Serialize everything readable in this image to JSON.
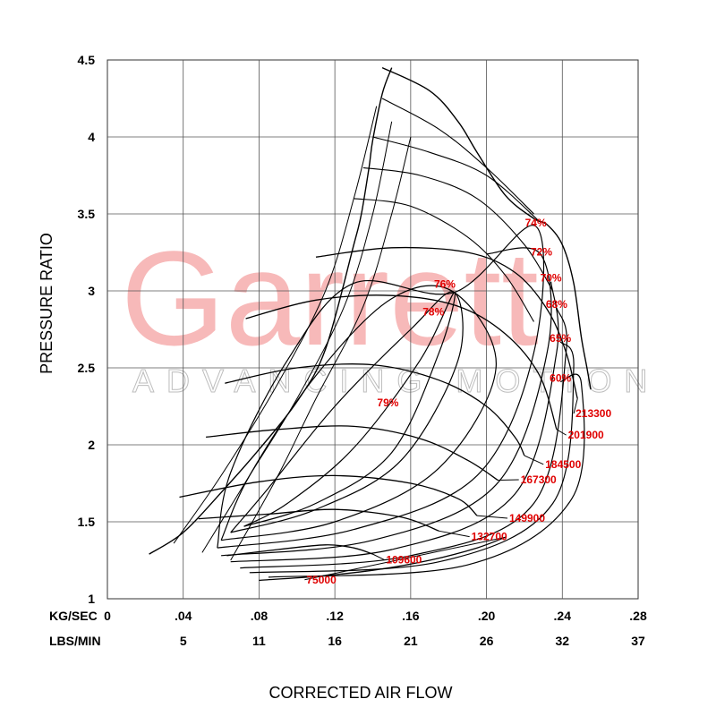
{
  "watermark": {
    "brand": "Garrett",
    "tagline": "ADVANCING MOTION"
  },
  "colors": {
    "label": "#e00000",
    "watermark": "#f7b9b9",
    "line": "#000000"
  },
  "chart_data": {
    "type": "line",
    "ylabel": "PRESSURE RATIO",
    "xlabel": "CORRECTED AIR FLOW",
    "xlim": [
      0,
      0.28
    ],
    "ylim": [
      1,
      4.5
    ],
    "grid": true,
    "x_row1_label": "KG/SEC",
    "x_row2_label": "LBS/MIN",
    "x_ticks": [
      {
        "v": 0,
        "kg": "0",
        "lbs": ""
      },
      {
        "v": 0.04,
        "kg": ".04",
        "lbs": "5"
      },
      {
        "v": 0.08,
        "kg": ".08",
        "lbs": "11"
      },
      {
        "v": 0.12,
        "kg": ".12",
        "lbs": "16"
      },
      {
        "v": 0.16,
        "kg": ".16",
        "lbs": "21"
      },
      {
        "v": 0.2,
        "kg": ".20",
        "lbs": "26"
      },
      {
        "v": 0.24,
        "kg": ".24",
        "lbs": "32"
      },
      {
        "v": 0.28,
        "kg": ".28",
        "lbs": "37"
      }
    ],
    "y_ticks": [
      {
        "v": 1,
        "label": "1"
      },
      {
        "v": 1.5,
        "label": "1.5"
      },
      {
        "v": 2,
        "label": "2"
      },
      {
        "v": 2.5,
        "label": "2.5"
      },
      {
        "v": 3,
        "label": "3"
      },
      {
        "v": 3.5,
        "label": "3.5"
      },
      {
        "v": 4,
        "label": "4"
      },
      {
        "v": 4.5,
        "label": "4.5"
      }
    ],
    "surge_line": [
      [
        0.022,
        1.29
      ],
      [
        0.04,
        1.43
      ],
      [
        0.06,
        1.69
      ],
      [
        0.08,
        1.97
      ],
      [
        0.1,
        2.28
      ],
      [
        0.115,
        2.62
      ],
      [
        0.13,
        3.3
      ],
      [
        0.134,
        3.5
      ],
      [
        0.138,
        3.8
      ],
      [
        0.14,
        3.98
      ],
      [
        0.145,
        4.28
      ],
      [
        0.15,
        4.45
      ]
    ],
    "outer_boundary": [
      [
        0.145,
        4.45
      ],
      [
        0.17,
        4.3
      ],
      [
        0.185,
        4.1
      ],
      [
        0.195,
        3.9
      ],
      [
        0.21,
        3.62
      ],
      [
        0.225,
        3.47
      ],
      [
        0.232,
        3.43
      ],
      [
        0.24,
        3.3
      ],
      [
        0.246,
        3.05
      ],
      [
        0.25,
        2.7
      ],
      [
        0.253,
        2.5
      ],
      [
        0.255,
        2.36
      ]
    ],
    "speed_lines": [
      {
        "name": "75000",
        "label_x": 0.105,
        "label_y": 1.1,
        "points": [
          [
            0.08,
            1.12
          ],
          [
            0.11,
            1.145
          ],
          [
            0.14,
            1.185
          ],
          [
            0.17,
            1.25
          ],
          [
            0.195,
            1.33
          ],
          [
            0.21,
            1.4
          ]
        ]
      },
      {
        "name": "109600",
        "label_x": 0.147,
        "label_y": 1.23,
        "points": [
          [
            0.063,
            1.28
          ],
          [
            0.09,
            1.32
          ],
          [
            0.115,
            1.35
          ],
          [
            0.13,
            1.33
          ],
          [
            0.14,
            1.29
          ]
        ]
      },
      {
        "name": "132700",
        "label_x": 0.192,
        "label_y": 1.38,
        "points": [
          [
            0.048,
            1.52
          ],
          [
            0.085,
            1.55
          ],
          [
            0.12,
            1.58
          ],
          [
            0.155,
            1.53
          ],
          [
            0.175,
            1.44
          ]
        ]
      },
      {
        "name": "149900",
        "label_x": 0.212,
        "label_y": 1.5,
        "points": [
          [
            0.038,
            1.66
          ],
          [
            0.08,
            1.76
          ],
          [
            0.12,
            1.8
          ],
          [
            0.16,
            1.75
          ],
          [
            0.185,
            1.65
          ],
          [
            0.195,
            1.54
          ]
        ]
      },
      {
        "name": "167300",
        "label_x": 0.218,
        "label_y": 1.75,
        "points": [
          [
            0.052,
            2.05
          ],
          [
            0.09,
            2.1
          ],
          [
            0.13,
            2.12
          ],
          [
            0.165,
            2.04
          ],
          [
            0.19,
            1.9
          ],
          [
            0.206,
            1.77
          ]
        ]
      },
      {
        "name": "184500",
        "label_x": 0.231,
        "label_y": 1.85,
        "points": [
          [
            0.062,
            2.4
          ],
          [
            0.1,
            2.5
          ],
          [
            0.14,
            2.52
          ],
          [
            0.175,
            2.42
          ],
          [
            0.2,
            2.25
          ],
          [
            0.215,
            2.05
          ],
          [
            0.22,
            1.93
          ]
        ]
      },
      {
        "name": "201900",
        "label_x": 0.243,
        "label_y": 2.04,
        "points": [
          [
            0.073,
            2.82
          ],
          [
            0.11,
            2.94
          ],
          [
            0.15,
            2.97
          ],
          [
            0.185,
            2.9
          ],
          [
            0.21,
            2.72
          ],
          [
            0.228,
            2.45
          ],
          [
            0.237,
            2.1
          ]
        ]
      },
      {
        "name": "213300",
        "label_x": 0.247,
        "label_y": 2.18,
        "points": [
          [
            0.11,
            3.22
          ],
          [
            0.15,
            3.28
          ],
          [
            0.19,
            3.25
          ],
          [
            0.215,
            3.12
          ],
          [
            0.232,
            2.88
          ],
          [
            0.242,
            2.6
          ],
          [
            0.248,
            2.3
          ]
        ]
      }
    ],
    "efficiency_islands": [
      {
        "name": "79%",
        "label_x": 0.148,
        "label_y": 2.25
      },
      {
        "name": "78%",
        "label_x": 0.172,
        "label_y": 2.84
      },
      {
        "name": "76%",
        "label_x": 0.178,
        "label_y": 3.02
      },
      {
        "name": "74%",
        "label_x": 0.226,
        "label_y": 3.42
      },
      {
        "name": "72%",
        "label_x": 0.229,
        "label_y": 3.23
      },
      {
        "name": "70%",
        "label_x": 0.234,
        "label_y": 3.06
      },
      {
        "name": "68%",
        "label_x": 0.237,
        "label_y": 2.89
      },
      {
        "name": "65%",
        "label_x": 0.239,
        "label_y": 2.67
      },
      {
        "name": "60%",
        "label_x": 0.239,
        "label_y": 2.41
      }
    ]
  }
}
